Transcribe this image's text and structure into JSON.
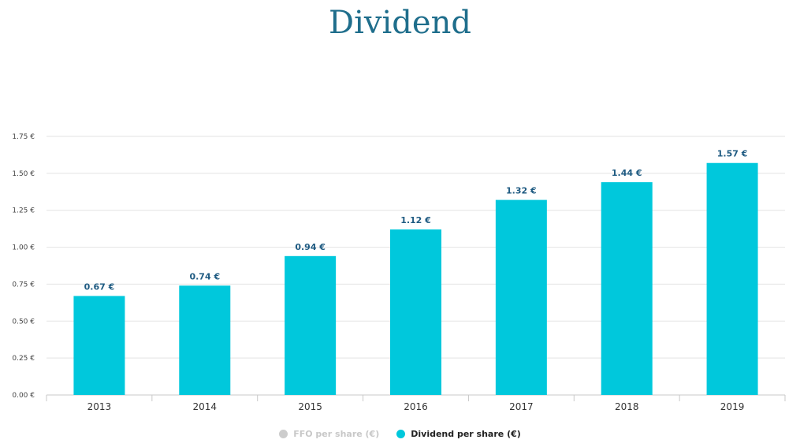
{
  "chart_data": {
    "type": "bar",
    "title": "Dividend",
    "categories": [
      "2013",
      "2014",
      "2015",
      "2016",
      "2017",
      "2018",
      "2019"
    ],
    "series": [
      {
        "name": "Dividend per share (€)",
        "values": [
          0.67,
          0.74,
          0.94,
          1.12,
          1.32,
          1.44,
          1.57
        ],
        "color": "#00c8dc"
      }
    ],
    "data_labels": [
      "0.67 €",
      "0.74 €",
      "0.94 €",
      "1.12 €",
      "1.32 €",
      "1.44 €",
      "1.57 €"
    ],
    "ylim": [
      0,
      1.75
    ],
    "yticks": [
      0,
      0.25,
      0.5,
      0.75,
      1.0,
      1.25,
      1.5,
      1.75
    ],
    "ytick_labels": [
      "0.00 €",
      "0.25 €",
      "0.50 €",
      "0.75 €",
      "1.00 €",
      "1.25 €",
      "1.50 €",
      "1.75 €"
    ],
    "grid": true,
    "legend_position": "bottom-center"
  },
  "legend": [
    {
      "label": "FFO per share (€)",
      "color": "#cccccc",
      "active": false
    },
    {
      "label": "Dividend per share (€)",
      "color": "#00c8dc",
      "active": true
    }
  ]
}
